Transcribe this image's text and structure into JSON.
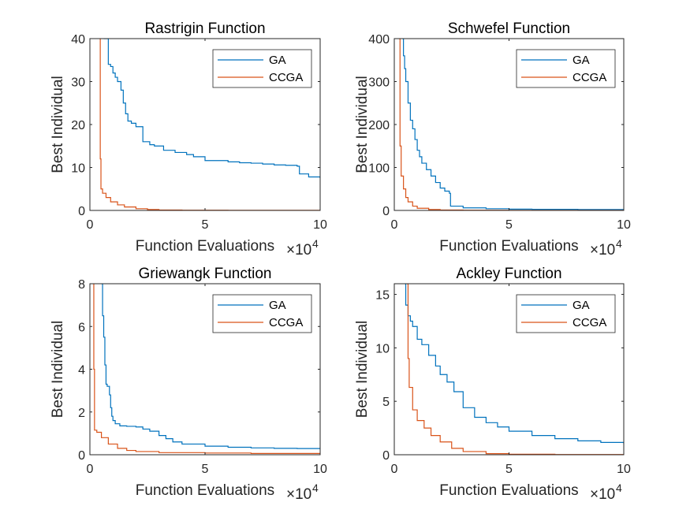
{
  "figure": {
    "background": "#ffffff"
  },
  "colors": {
    "GA": "#0072BD",
    "CCGA": "#D95319",
    "axis": "#262626"
  },
  "chart_data": [
    {
      "type": "line",
      "title": "Rastrigin Function",
      "xlabel": "Function Evaluations",
      "ylabel": "Best Individual",
      "x_exponent_label": "×10",
      "x_exponent": "4",
      "xlim": [
        0,
        10
      ],
      "ylim": [
        0,
        40
      ],
      "xticks": [
        0,
        5,
        10
      ],
      "yticks": [
        0,
        10,
        20,
        30,
        40
      ],
      "legend_position": "top-right",
      "series": [
        {
          "name": "GA",
          "color": "#0072BD",
          "x": [
            0.6,
            0.8,
            0.9,
            1.0,
            1.1,
            1.2,
            1.35,
            1.45,
            1.55,
            1.65,
            1.8,
            2.0,
            2.3,
            2.6,
            2.8,
            3.2,
            3.7,
            4.2,
            4.5,
            5.0,
            6.0,
            6.5,
            7.0,
            7.5,
            8.0,
            8.5,
            9.0,
            9.1,
            9.5,
            10.0
          ],
          "y": [
            40,
            34,
            33.5,
            32,
            31,
            30,
            28,
            25,
            22.5,
            20.8,
            20.3,
            19.5,
            16,
            15.3,
            15,
            14,
            13.5,
            13,
            12.5,
            11.6,
            11.3,
            11.1,
            11.0,
            10.8,
            10.6,
            10.5,
            10.3,
            8.5,
            7.8,
            7.5
          ]
        },
        {
          "name": "CCGA",
          "color": "#D95319",
          "x": [
            0.43,
            0.45,
            0.48,
            0.55,
            0.7,
            0.9,
            1.2,
            1.5,
            2.0,
            2.5,
            3.0,
            4.0,
            6.0,
            10.0
          ],
          "y": [
            40,
            12,
            5.0,
            4.0,
            3.0,
            2.0,
            1.3,
            0.8,
            0.4,
            0.2,
            0.1,
            0.05,
            0.02,
            0.01
          ]
        }
      ]
    },
    {
      "type": "line",
      "title": "Schwefel Function",
      "xlabel": "Function Evaluations",
      "ylabel": "Best Individual",
      "x_exponent_label": "×10",
      "x_exponent": "4",
      "xlim": [
        0,
        10
      ],
      "ylim": [
        0,
        400
      ],
      "xticks": [
        0,
        5,
        10
      ],
      "yticks": [
        0,
        100,
        200,
        300,
        400
      ],
      "legend_position": "top-right",
      "series": [
        {
          "name": "GA",
          "color": "#0072BD",
          "x": [
            0.35,
            0.4,
            0.45,
            0.5,
            0.6,
            0.7,
            0.8,
            0.9,
            1.0,
            1.1,
            1.2,
            1.4,
            1.6,
            1.8,
            2.0,
            2.2,
            2.4,
            2.45,
            3.0,
            4.0,
            5.0,
            6.0,
            8.0,
            10.0
          ],
          "y": [
            400,
            360,
            330,
            300,
            250,
            210,
            190,
            165,
            140,
            125,
            110,
            95,
            80,
            65,
            52,
            45,
            40,
            10,
            6,
            4,
            3,
            2.5,
            2,
            1
          ]
        },
        {
          "name": "CCGA",
          "color": "#D95319",
          "x": [
            0.2,
            0.25,
            0.3,
            0.4,
            0.5,
            0.6,
            0.8,
            1.0,
            1.5,
            2.0,
            3.0,
            5.0,
            10.0
          ],
          "y": [
            400,
            150,
            80,
            50,
            30,
            20,
            10,
            5,
            2,
            1,
            0.5,
            0.2,
            0.1
          ]
        }
      ]
    },
    {
      "type": "line",
      "title": "Griewangk Function",
      "xlabel": "Function Evaluations",
      "ylabel": "Best Individual",
      "x_exponent_label": "×10",
      "x_exponent": "4",
      "xlim": [
        0,
        10
      ],
      "ylim": [
        0,
        8
      ],
      "xticks": [
        0,
        5,
        10
      ],
      "yticks": [
        0,
        2,
        4,
        6,
        8
      ],
      "legend_position": "top-right",
      "series": [
        {
          "name": "GA",
          "color": "#0072BD",
          "x": [
            0.5,
            0.55,
            0.6,
            0.65,
            0.7,
            0.75,
            0.8,
            0.85,
            0.9,
            0.95,
            1.0,
            1.1,
            1.3,
            1.6,
            2.0,
            2.3,
            2.6,
            3.0,
            3.3,
            3.6,
            4.0,
            5.0,
            6.0,
            7.0,
            8.0,
            9.0,
            10.0
          ],
          "y": [
            8,
            6.5,
            5.5,
            4.2,
            3.3,
            3.2,
            3.2,
            2.8,
            2.2,
            1.8,
            1.6,
            1.45,
            1.35,
            1.33,
            1.3,
            1.2,
            1.1,
            0.9,
            0.75,
            0.6,
            0.5,
            0.4,
            0.35,
            0.32,
            0.3,
            0.29,
            0.28
          ]
        },
        {
          "name": "CCGA",
          "color": "#D95319",
          "x": [
            0.15,
            0.17,
            0.2,
            0.3,
            0.5,
            0.8,
            1.2,
            1.6,
            2.0,
            3.0,
            5.0,
            7.0,
            10.0
          ],
          "y": [
            8,
            4,
            1.15,
            1.05,
            0.8,
            0.5,
            0.3,
            0.2,
            0.15,
            0.1,
            0.08,
            0.06,
            0.05
          ]
        }
      ]
    },
    {
      "type": "line",
      "title": "Ackley Function",
      "xlabel": "Function Evaluations",
      "ylabel": "Best Individual",
      "x_exponent_label": "×10",
      "x_exponent": "4",
      "xlim": [
        0,
        10
      ],
      "ylim": [
        0,
        16
      ],
      "xticks": [
        0,
        5,
        10
      ],
      "yticks": [
        0,
        5,
        10,
        15
      ],
      "legend_position": "top-right",
      "series": [
        {
          "name": "GA",
          "color": "#0072BD",
          "x": [
            0.45,
            0.5,
            0.6,
            0.7,
            0.8,
            1.0,
            1.2,
            1.5,
            1.8,
            2.0,
            2.3,
            2.6,
            3.0,
            3.5,
            4.0,
            4.5,
            5.0,
            6.0,
            7.0,
            8.0,
            9.0,
            10.0
          ],
          "y": [
            16,
            14,
            13,
            12.5,
            12,
            10.8,
            10.3,
            9.3,
            8.3,
            7.5,
            6.8,
            5.9,
            4.4,
            3.5,
            3.0,
            2.6,
            2.2,
            1.8,
            1.5,
            1.3,
            1.15,
            1.0
          ]
        },
        {
          "name": "CCGA",
          "color": "#D95319",
          "x": [
            0.55,
            0.6,
            0.65,
            0.8,
            1.0,
            1.3,
            1.6,
            2.0,
            2.5,
            3.0,
            4.0,
            5.0,
            7.0,
            10.0
          ],
          "y": [
            16,
            9.0,
            6.3,
            4.2,
            3.2,
            2.5,
            1.8,
            1.2,
            0.6,
            0.3,
            0.1,
            0.05,
            0.02,
            0.01
          ]
        }
      ]
    }
  ]
}
